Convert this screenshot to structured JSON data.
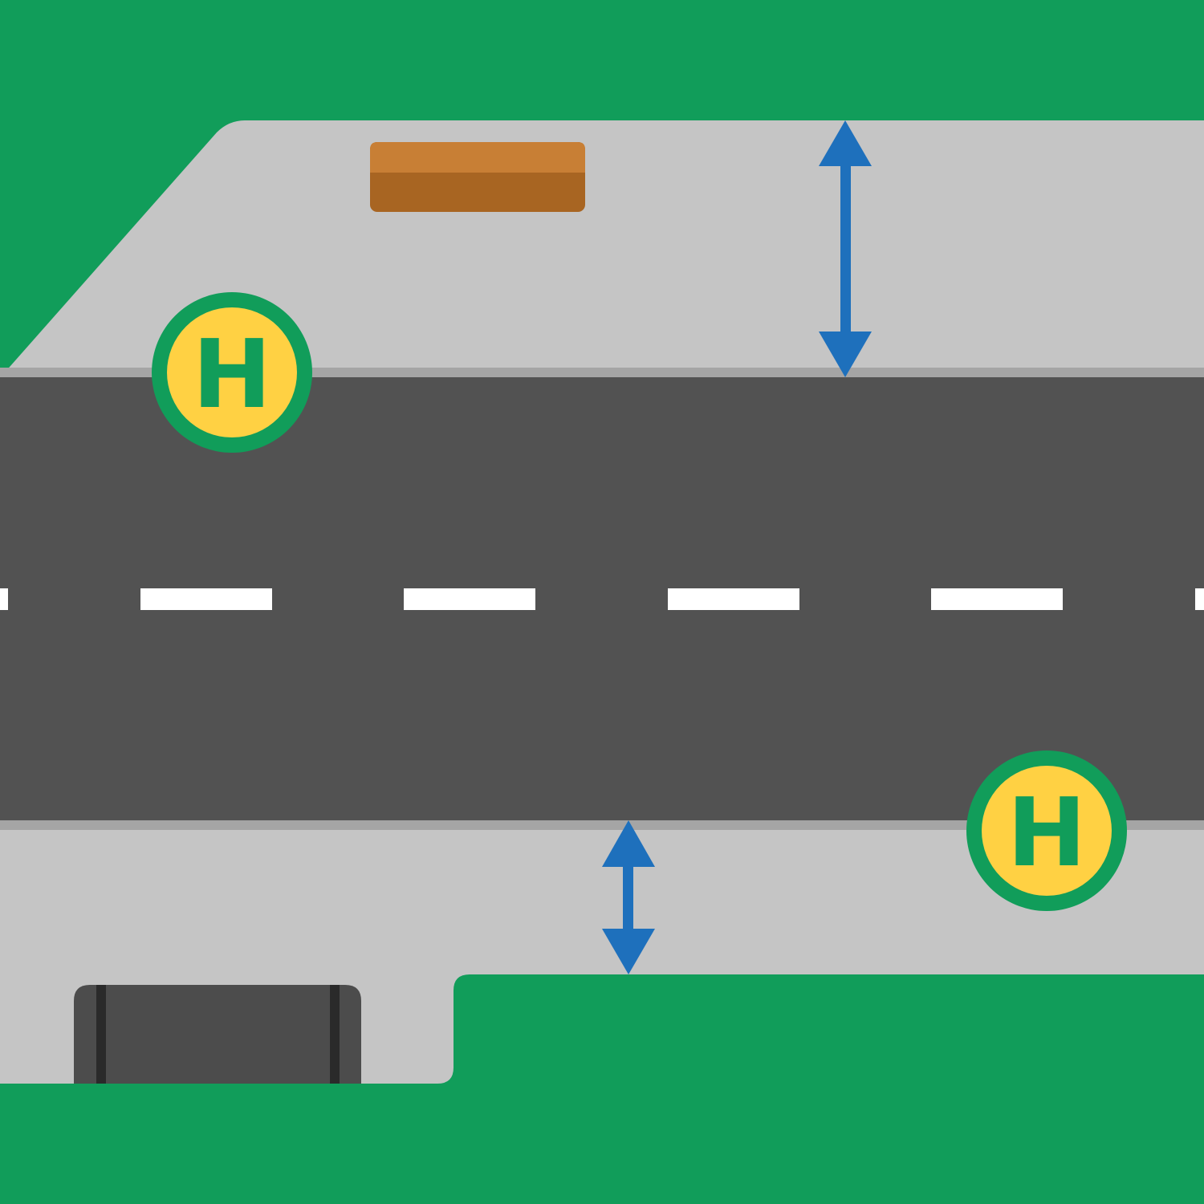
{
  "colors": {
    "grass": "#119d5a",
    "sidewalk": "#c5c5c5",
    "curb": "#a5a5a5",
    "road": "#525252",
    "lane_marking": "#ffffff",
    "arrow": "#1e70bc",
    "bench_top": "#c87f35",
    "bench_side": "#a86522",
    "shelter": "#4c4c4c",
    "shelter_post": "#2a2a2a",
    "stop_sign_fill": "#ffd143",
    "stop_sign_ring": "#119d5a"
  },
  "bus_stops": [
    {
      "id": "north",
      "letter": "H"
    },
    {
      "id": "south",
      "letter": "H"
    }
  ],
  "icons": {
    "bench": "bench-icon",
    "shelter": "bus-shelter-icon",
    "arrow": "double-arrow-icon",
    "stop_sign": "bus-stop-sign-icon"
  }
}
